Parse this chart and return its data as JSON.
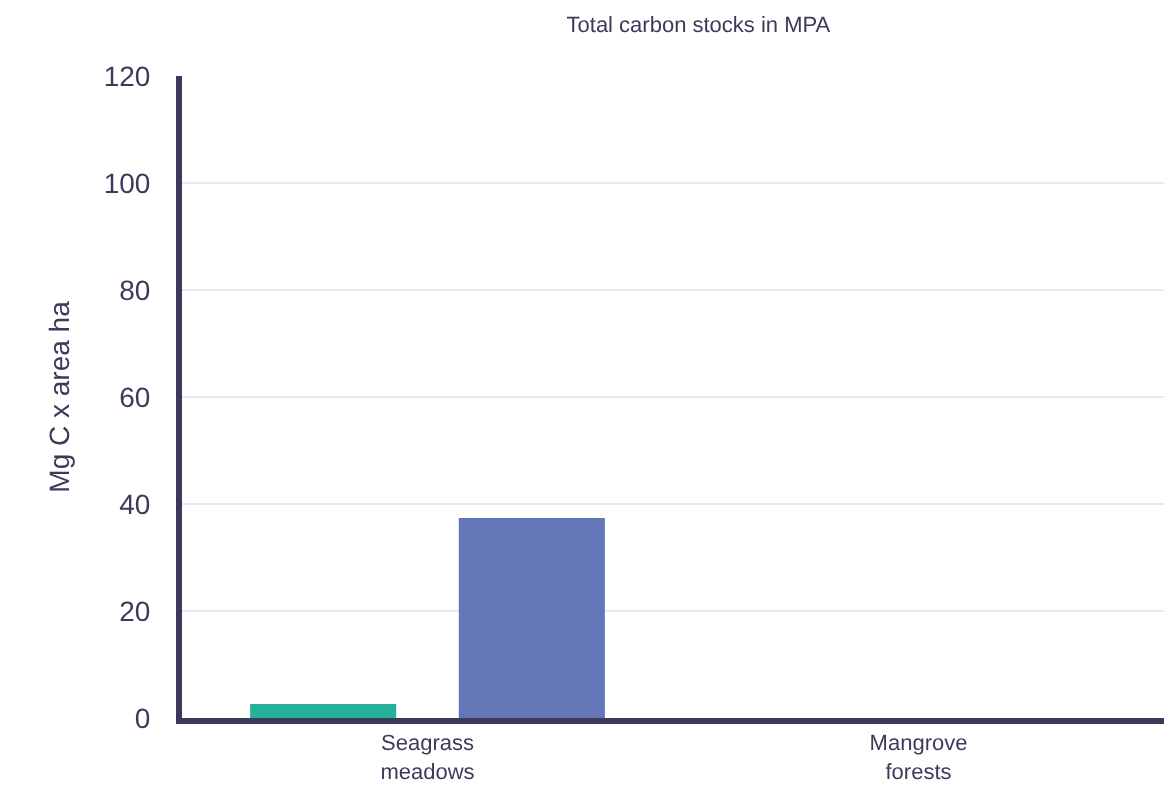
{
  "chart_data": {
    "type": "bar",
    "title": "Total carbon stocks in MPA",
    "ylabel": "Mg C x area ha",
    "categories": [
      "Seagrass meadows",
      "Mangrove forests"
    ],
    "series": [
      {
        "color": "#26b09a",
        "values": [
          2.6,
          0
        ]
      },
      {
        "color": "#6476b8",
        "values": [
          37.4,
          0
        ]
      }
    ],
    "ylim": [
      0,
      120
    ],
    "yticks": [
      0,
      20,
      40,
      60,
      80,
      100,
      120
    ],
    "grid": "y"
  }
}
